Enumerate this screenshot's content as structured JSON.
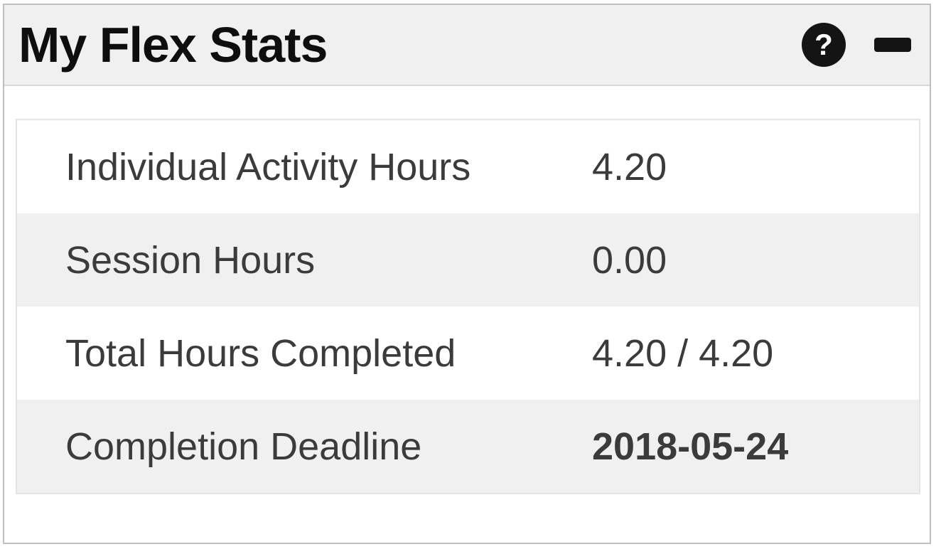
{
  "widget": {
    "title": "My Flex Stats",
    "help_glyph": "?",
    "colors": {
      "header_bg": "#f0f0f0",
      "row_alt_bg": "#f0f0f0",
      "icon_bg": "#141414",
      "panel_border": "#bfbfbf",
      "text": "#3b3b3b"
    }
  },
  "stats": {
    "rows": [
      {
        "label": "Individual Activity Hours",
        "value": "4.20"
      },
      {
        "label": "Session Hours",
        "value": "0.00"
      },
      {
        "label": "Total Hours Completed",
        "value": "4.20 / 4.20"
      },
      {
        "label": "Completion Deadline",
        "value": "2018-05-24"
      }
    ]
  }
}
